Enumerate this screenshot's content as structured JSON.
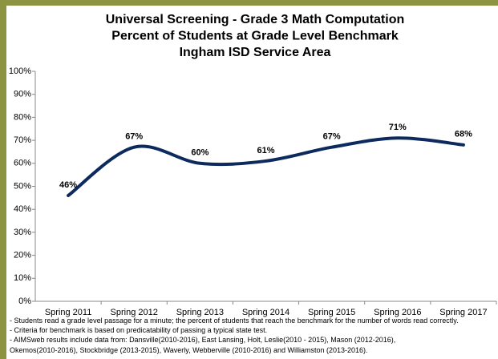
{
  "chart_data": {
    "type": "line",
    "title": [
      "Universal Screening - Grade 3 Math Computation",
      "Percent of Students at Grade Level Benchmark",
      "Ingham ISD Service Area"
    ],
    "categories": [
      "Spring 2011",
      "Spring 2012",
      "Spring 2013",
      "Spring 2014",
      "Spring 2015",
      "Spring 2016",
      "Spring 2017"
    ],
    "values": [
      46,
      67,
      60,
      61,
      67,
      71,
      68
    ],
    "value_labels": [
      "46%",
      "67%",
      "60%",
      "61%",
      "67%",
      "71%",
      "68%"
    ],
    "color": "#0c2a5e",
    "ylim": [
      0,
      100
    ],
    "yticks": [
      {
        "value": 0,
        "label": "0%"
      },
      {
        "value": 10,
        "label": "10%"
      },
      {
        "value": 20,
        "label": "20%"
      },
      {
        "value": 30,
        "label": "30%"
      },
      {
        "value": 40,
        "label": "40%"
      },
      {
        "value": 50,
        "label": "50%"
      },
      {
        "value": 60,
        "label": "60%"
      },
      {
        "value": 70,
        "label": "70%"
      },
      {
        "value": 80,
        "label": "80%"
      },
      {
        "value": 90,
        "label": "90%"
      },
      {
        "value": 100,
        "label": "100%"
      }
    ],
    "grid": false,
    "notes": [
      "- Students read a grade level passage for a minute; the percent of students that reach the benchmark for the number of words read correctly.",
      "- Criteria for benchmark is based on predicatability of passing a typical state test.",
      "- AIMSweb results include data from: Dansville(2010-2016), East Lansing, Holt, Leslie(2010 - 2015), Mason (2012-2016), Okemos(2010-2016), Stockbridge (2013-2015), Waverly, Webberville (2010-2016) and Williamston (2013-2016)."
    ]
  }
}
